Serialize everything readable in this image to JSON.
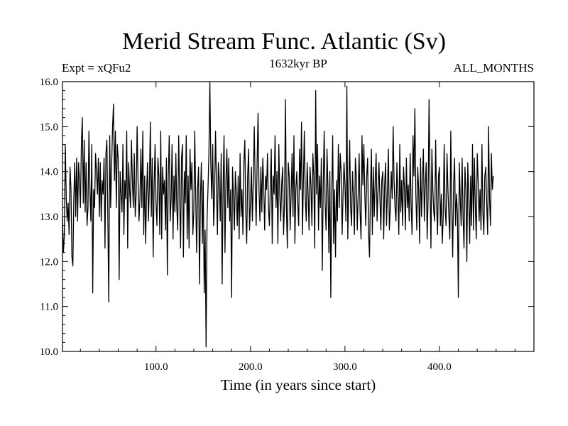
{
  "chart_data": {
    "type": "line",
    "title": "Merid Stream Func. Atlantic (Sv)",
    "subtitle": "1632kyr BP",
    "left_annotation": "Expt = xQFu2",
    "right_annotation": "ALL_MONTHS",
    "xlabel": "Time (in years since start)",
    "ylabel": "",
    "xlim": [
      1,
      500
    ],
    "ylim": [
      10.0,
      16.0
    ],
    "x_ticks": [
      100,
      200,
      300,
      400
    ],
    "x_tick_labels": [
      "100.0",
      "200.0",
      "300.0",
      "400.0"
    ],
    "y_ticks": [
      10,
      11,
      12,
      13,
      14,
      15,
      16
    ],
    "y_tick_labels": [
      "10.0",
      "11.0",
      "12.0",
      "13.0",
      "14.0",
      "15.0",
      "16.0"
    ],
    "series": [
      {
        "name": "Merid Stream Func. Atlantic",
        "color": "#000000",
        "x_start": 1,
        "x_step": 1,
        "values": [
          13.0,
          12.2,
          12.6,
          14.6,
          13.4,
          12.9,
          13.3,
          12.6,
          14.1,
          13.6,
          12.1,
          11.9,
          13.4,
          14.2,
          13.0,
          14.3,
          12.9,
          14.2,
          13.8,
          13.2,
          14.6,
          15.2,
          13.3,
          14.7,
          13.1,
          14.2,
          12.8,
          13.2,
          14.9,
          13.6,
          12.9,
          14.6,
          11.3,
          13.6,
          13.2,
          14.4,
          14.0,
          13.5,
          14.3,
          13.0,
          14.2,
          12.9,
          13.8,
          13.5,
          14.3,
          12.3,
          14.4,
          14.7,
          13.0,
          11.1,
          14.8,
          13.2,
          14.1,
          15.0,
          15.5,
          13.8,
          14.9,
          13.2,
          14.6,
          14.3,
          11.6,
          14.0,
          13.5,
          13.1,
          14.6,
          12.6,
          13.8,
          13.4,
          14.9,
          12.3,
          14.2,
          13.6,
          13.2,
          14.7,
          13.8,
          13.2,
          14.4,
          13.0,
          13.5,
          15.0,
          13.8,
          12.9,
          13.4,
          14.5,
          13.2,
          14.9,
          12.6,
          13.9,
          12.4,
          13.5,
          14.2,
          12.9,
          13.7,
          15.1,
          13.0,
          14.3,
          12.1,
          13.7,
          14.6,
          13.3,
          12.8,
          14.3,
          13.9,
          12.6,
          14.9,
          12.5,
          14.1,
          13.5,
          13.8,
          12.7,
          14.3,
          11.7,
          13.9,
          14.8,
          12.9,
          13.4,
          14.6,
          12.5,
          13.9,
          13.1,
          14.4,
          13.2,
          12.7,
          14.8,
          13.5,
          12.3,
          14.3,
          14.6,
          12.1,
          14.0,
          13.3,
          14.8,
          12.5,
          13.9,
          12.3,
          14.5,
          13.6,
          14.2,
          12.6,
          13.1,
          14.9,
          13.5,
          12.2,
          13.6,
          14.1,
          11.5,
          13.4,
          14.2,
          12.4,
          13.8,
          11.3,
          12.7,
          10.1,
          12.9,
          13.6,
          14.4,
          16.0,
          14.2,
          13.4,
          14.6,
          12.8,
          13.5,
          14.9,
          13.7,
          12.6,
          14.2,
          13.8,
          12.9,
          14.4,
          11.5,
          13.6,
          14.8,
          12.2,
          13.8,
          14.5,
          13.2,
          14.3,
          12.9,
          13.6,
          11.2,
          14.1,
          13.4,
          12.7,
          14.0,
          13.5,
          12.8,
          13.9,
          12.5,
          14.4,
          13.0,
          13.6,
          12.6,
          14.2,
          14.7,
          13.1,
          12.4,
          13.9,
          14.5,
          12.7,
          13.3,
          14.1,
          12.9,
          13.8,
          15.0,
          13.7,
          12.8,
          14.2,
          15.3,
          13.6,
          12.9,
          14.1,
          13.1,
          14.3,
          13.7,
          12.7,
          13.9,
          13.6,
          14.4,
          13.2,
          12.8,
          13.7,
          14.5,
          12.4,
          13.9,
          13.5,
          14.8,
          13.2,
          14.0,
          12.4,
          14.6,
          13.5,
          12.9,
          13.7,
          14.1,
          12.6,
          13.3,
          15.6,
          13.2,
          12.3,
          14.2,
          13.9,
          12.7,
          13.5,
          14.4,
          13.0,
          14.8,
          12.4,
          13.6,
          14.0,
          13.3,
          12.8,
          14.5,
          13.6,
          15.1,
          12.6,
          13.8,
          14.9,
          13.4,
          12.9,
          14.2,
          13.5,
          12.7,
          14.1,
          13.7,
          12.8,
          14.4,
          13.9,
          12.3,
          15.8,
          13.5,
          14.6,
          12.7,
          13.9,
          13.2,
          14.3,
          11.8,
          13.7,
          14.9,
          13.3,
          12.7,
          14.5,
          13.6,
          12.2,
          14.0,
          11.2,
          13.5,
          14.8,
          12.4,
          13.6,
          12.1,
          13.8,
          12.9,
          14.6,
          13.2,
          14.4,
          14.0,
          12.6,
          13.5,
          14.2,
          13.7,
          12.9,
          15.9,
          12.5,
          13.6,
          14.7,
          13.2,
          12.8,
          14.0,
          13.4,
          12.6,
          14.3,
          13.9,
          12.7,
          13.5,
          14.4,
          13.1,
          12.5,
          14.8,
          13.7,
          14.6,
          13.5,
          12.8,
          13.9,
          14.3,
          12.6,
          12.1,
          13.6,
          14.5,
          12.6,
          14.1,
          13.0,
          13.8,
          14.4,
          12.9,
          13.6,
          14.2,
          13.4,
          12.7,
          13.8,
          14.0,
          12.5,
          13.7,
          14.2,
          12.8,
          13.6,
          14.5,
          12.7,
          13.2,
          14.0,
          13.4,
          15.0,
          13.8,
          13.2,
          12.9,
          14.2,
          13.5,
          12.6,
          14.6,
          13.1,
          13.8,
          12.8,
          14.1,
          13.6,
          12.7,
          14.3,
          13.2,
          13.7,
          12.9,
          14.4,
          13.3,
          12.6,
          14.8,
          13.9,
          15.4,
          13.5,
          12.7,
          14.1,
          13.6,
          12.4,
          14.3,
          13.0,
          13.8,
          14.5,
          12.9,
          13.7,
          14.2,
          12.5,
          13.4,
          15.6,
          13.8,
          12.3,
          14.5,
          13.6,
          13.1,
          12.9,
          14.7,
          13.3,
          12.6,
          13.9,
          14.1,
          12.8,
          13.5,
          12.4,
          13.0,
          14.6,
          13.2,
          12.8,
          14.4,
          13.6,
          13.0,
          12.5,
          14.9,
          13.3,
          12.1,
          13.7,
          14.3,
          12.8,
          13.5,
          13.1,
          11.2,
          14.2,
          13.4,
          12.8,
          14.3,
          13.0,
          12.3,
          14.1,
          13.6,
          12.0,
          14.2,
          13.5,
          12.4,
          13.9,
          12.8,
          14.6,
          12.7,
          14.3,
          13.2,
          12.5,
          14.4,
          13.8,
          12.9,
          13.6,
          12.7,
          14.6,
          13.1,
          12.6,
          13.9,
          14.1,
          13.3,
          12.6,
          15.0,
          13.4,
          12.8,
          14.4,
          13.6,
          13.9
        ]
      }
    ]
  }
}
